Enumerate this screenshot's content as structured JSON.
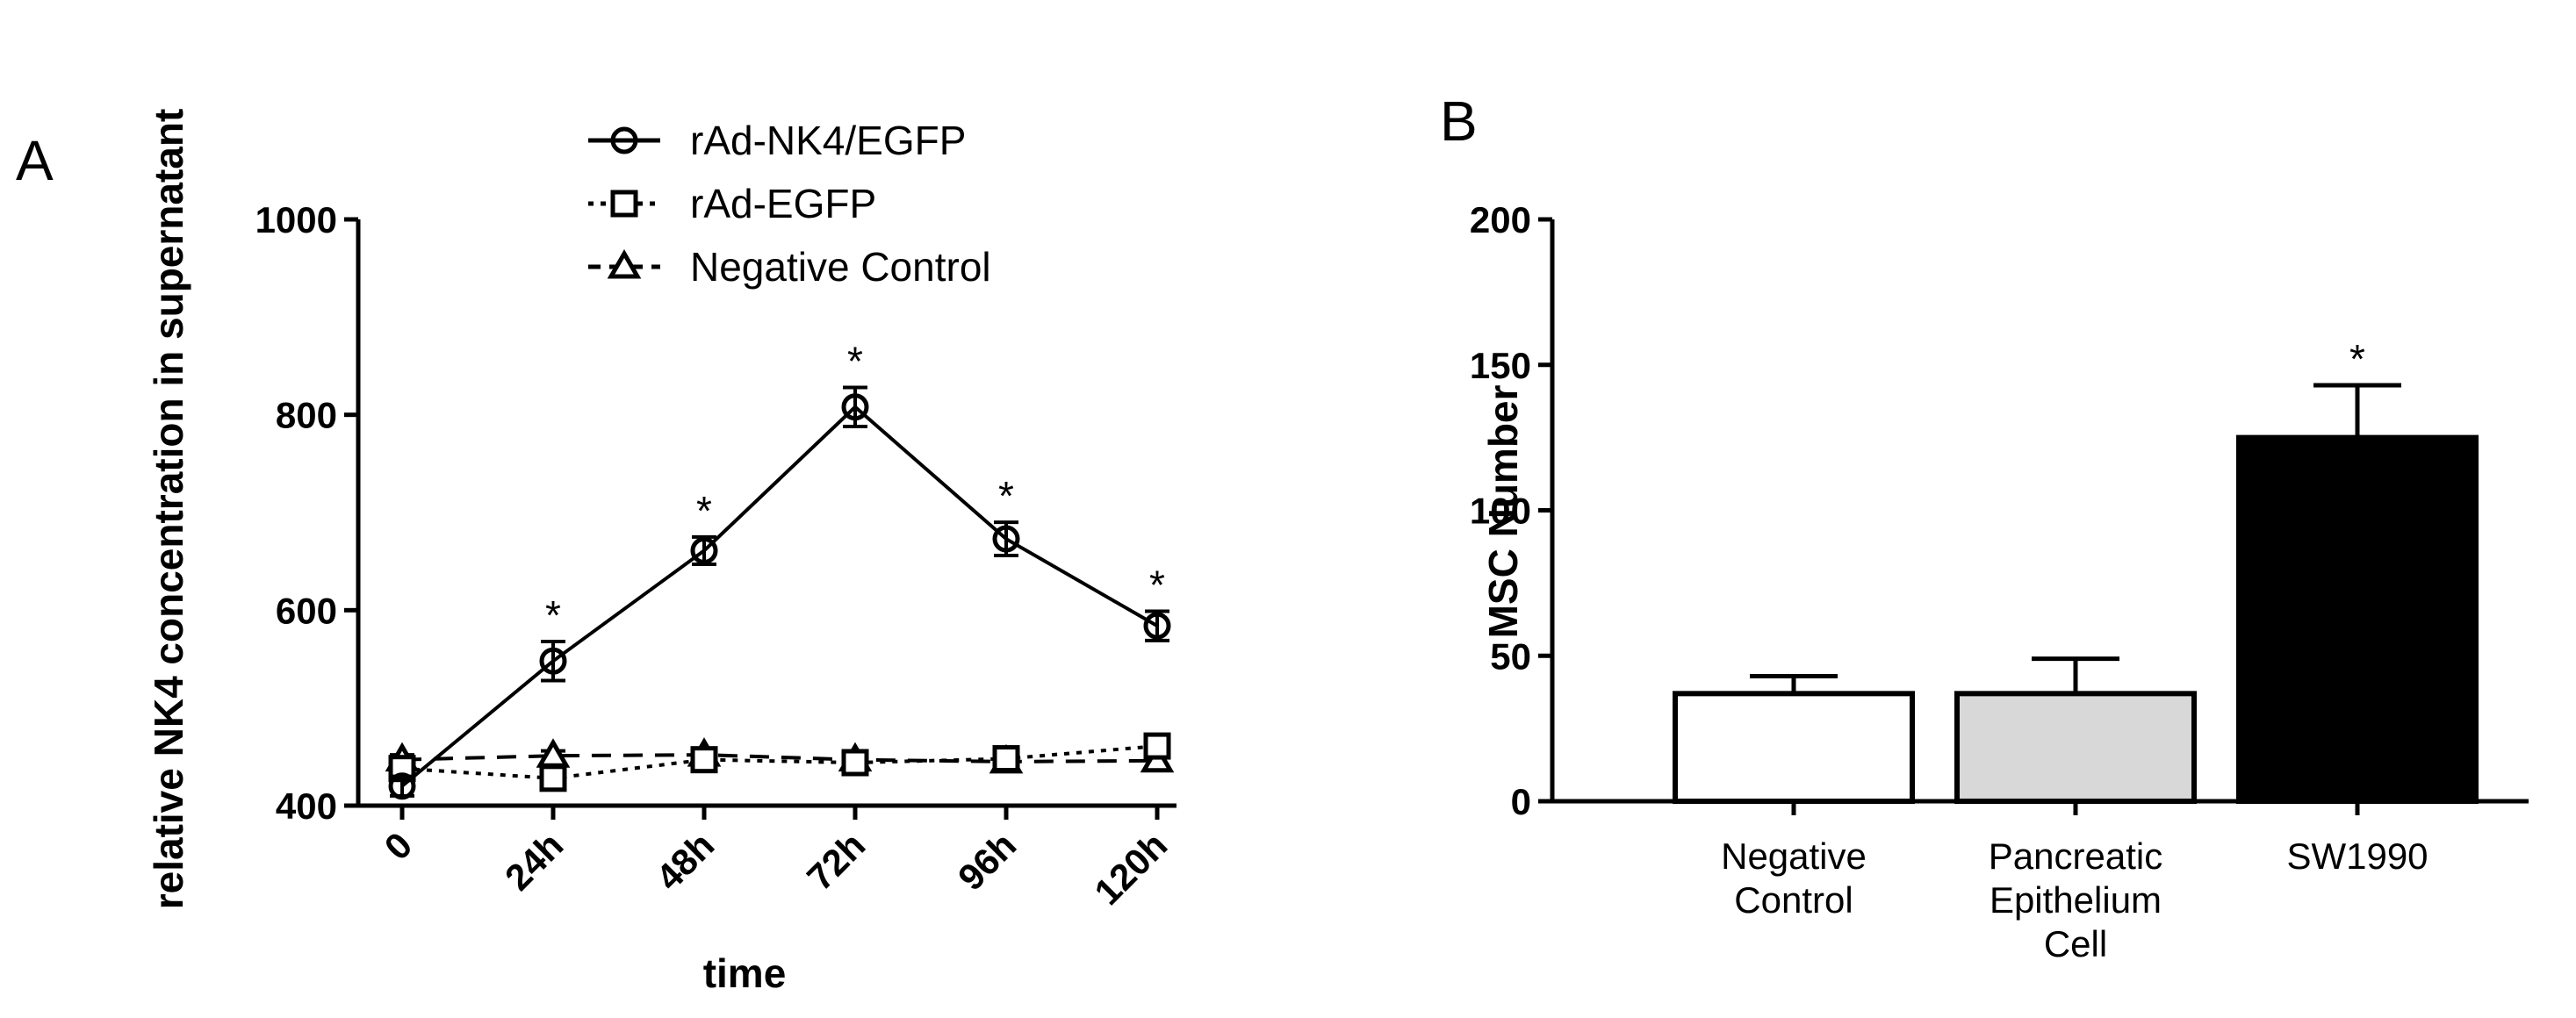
{
  "chart_data": [
    {
      "panel_label": "A",
      "type": "line",
      "xlabel": "time",
      "ylabel": "relative NK4 concentration in supernatant",
      "categories": [
        "0",
        "24h",
        "48h",
        "72h",
        "96h",
        "120h"
      ],
      "ylim": [
        400,
        1000
      ],
      "yticks": [
        400,
        600,
        800,
        1000
      ],
      "grid": false,
      "legend_placement": "top",
      "series": [
        {
          "name": "rAd-NK4/EGFP",
          "marker": "circle",
          "line": "solid",
          "values": [
            420,
            548,
            661,
            808,
            673,
            584
          ],
          "errors": [
            10,
            20,
            14,
            20,
            17,
            15
          ],
          "significance": [
            "",
            "*",
            "*",
            "*",
            "*",
            "*"
          ]
        },
        {
          "name": "rAd-EGFP",
          "marker": "square",
          "line": "dotted",
          "values": [
            438,
            428,
            447,
            444,
            448,
            461
          ],
          "errors": [
            5,
            6,
            6,
            5,
            6,
            6
          ],
          "significance": [
            "",
            "",
            "",
            "",
            "",
            ""
          ]
        },
        {
          "name": "Negative Control",
          "marker": "triangle",
          "line": "dashed",
          "values": [
            447,
            451,
            452,
            447,
            445,
            446
          ],
          "errors": [
            5,
            5,
            5,
            5,
            5,
            5
          ],
          "significance": [
            "",
            "",
            "",
            "",
            "",
            ""
          ]
        }
      ]
    },
    {
      "panel_label": "B",
      "type": "bar",
      "ylabel": "MSC Number",
      "xlabel": "",
      "categories": [
        [
          "Negative",
          "Control"
        ],
        [
          "Pancreatic",
          "Epithelium",
          "Cell"
        ],
        [
          "SW1990"
        ]
      ],
      "values": [
        37,
        37,
        125
      ],
      "errors": [
        6,
        12,
        18
      ],
      "bar_colors": [
        "#ffffff",
        "#d8d8d8",
        "#000000"
      ],
      "significance": [
        "",
        "",
        "*"
      ],
      "ylim": [
        0,
        200
      ],
      "yticks": [
        0,
        50,
        100,
        150,
        200
      ],
      "grid": false
    }
  ]
}
